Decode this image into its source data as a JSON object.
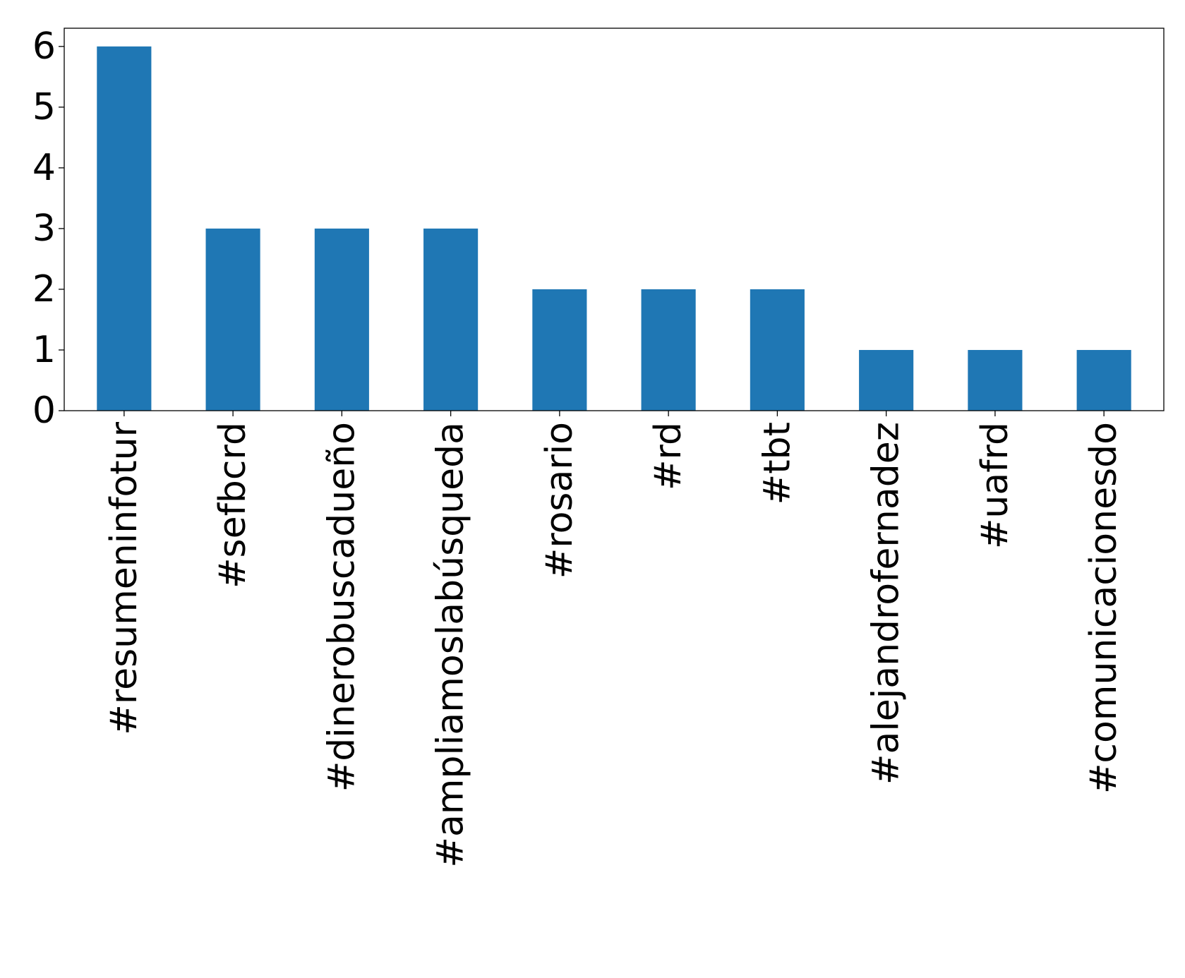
{
  "chart_data": {
    "type": "bar",
    "categories": [
      "#resumeninfotur",
      "#sefbcrd",
      "#dinerobuscadueño",
      "#ampliamoslabúsqueda",
      "#rosario",
      "#rd",
      "#tbt",
      "#alejandrofernadez",
      "#uafrd",
      "#comunicacionesdo"
    ],
    "values": [
      6,
      3,
      3,
      3,
      2,
      2,
      2,
      1,
      1,
      1
    ],
    "yticks": [
      0,
      1,
      2,
      3,
      4,
      5,
      6
    ],
    "ylim": [
      0,
      6.3
    ],
    "bar_color": "#1f77b4",
    "grid": false,
    "legend": "none"
  }
}
